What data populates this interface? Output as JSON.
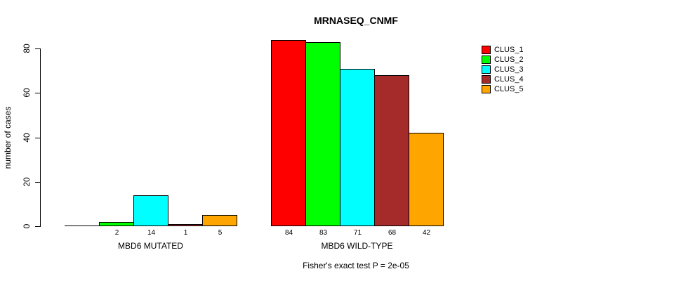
{
  "chart_data": {
    "type": "bar",
    "title": "MRNASEQ_CNMF",
    "xlabel": "",
    "ylabel": "number of cases",
    "ylim": [
      0,
      80
    ],
    "yticks": [
      0,
      20,
      40,
      60,
      80
    ],
    "grid": false,
    "legend_position": "right",
    "categories": [
      "MBD6 MUTATED",
      "MBD6 WILD-TYPE"
    ],
    "series": [
      {
        "name": "CLUS_1",
        "color": "#FF0000",
        "values": [
          0,
          84
        ]
      },
      {
        "name": "CLUS_2",
        "color": "#00FF00",
        "values": [
          2,
          83
        ]
      },
      {
        "name": "CLUS_3",
        "color": "#00FFFF",
        "values": [
          14,
          71
        ]
      },
      {
        "name": "CLUS_4",
        "color": "#A52A2A",
        "values": [
          1,
          68
        ]
      },
      {
        "name": "CLUS_5",
        "color": "#FFA500",
        "values": [
          5,
          42
        ]
      }
    ],
    "value_labels": [
      [
        "",
        "2",
        "14",
        "1",
        "5"
      ],
      [
        "84",
        "83",
        "71",
        "68",
        "42"
      ]
    ],
    "annotation": "Fisher's exact test P = 2e-05"
  },
  "legend": {
    "entries": [
      {
        "label": "CLUS_1",
        "color": "#FF0000"
      },
      {
        "label": "CLUS_2",
        "color": "#00FF00"
      },
      {
        "label": "CLUS_3",
        "color": "#00FFFF"
      },
      {
        "label": "CLUS_4",
        "color": "#A52A2A"
      },
      {
        "label": "CLUS_5",
        "color": "#FFA500"
      }
    ]
  }
}
